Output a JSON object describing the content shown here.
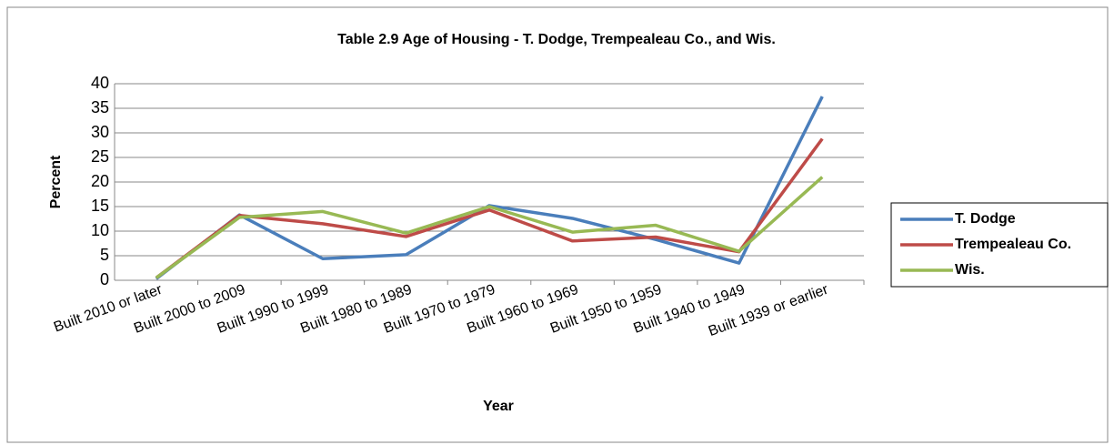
{
  "chart_data": {
    "type": "line",
    "title": "Table 2.9 Age of Housing - T. Dodge, Trempealeau Co., and Wis.",
    "x_label": "Year",
    "y_label": "Percent",
    "categories": [
      "Built 2010 or later",
      "Built 2000 to 2009",
      "Built 1990 to 1999",
      "Built 1980 to 1989",
      "Built 1970 to 1979",
      "Built 1960 to 1969",
      "Built 1950 to 1959",
      "Built 1940 to 1949",
      "Built 1939 or earlier"
    ],
    "series": [
      {
        "name": "T. Dodge",
        "color": "#4a7ebb",
        "values": [
          0.3,
          13.3,
          4.4,
          5.2,
          15.2,
          12.6,
          8.3,
          3.5,
          37.4
        ]
      },
      {
        "name": "Trempealeau Co.",
        "color": "#be4b48",
        "values": [
          0.5,
          13.2,
          11.5,
          8.9,
          14.3,
          8.0,
          8.8,
          5.8,
          28.8
        ]
      },
      {
        "name": "Wis.",
        "color": "#98b954",
        "values": [
          0.5,
          12.8,
          14.0,
          9.6,
          15.0,
          9.8,
          11.2,
          5.9,
          21.0
        ]
      }
    ],
    "ylim": [
      0,
      40
    ],
    "yticks": [
      0,
      5,
      10,
      15,
      20,
      25,
      30,
      35,
      40
    ],
    "grid": true,
    "legend": "right"
  }
}
